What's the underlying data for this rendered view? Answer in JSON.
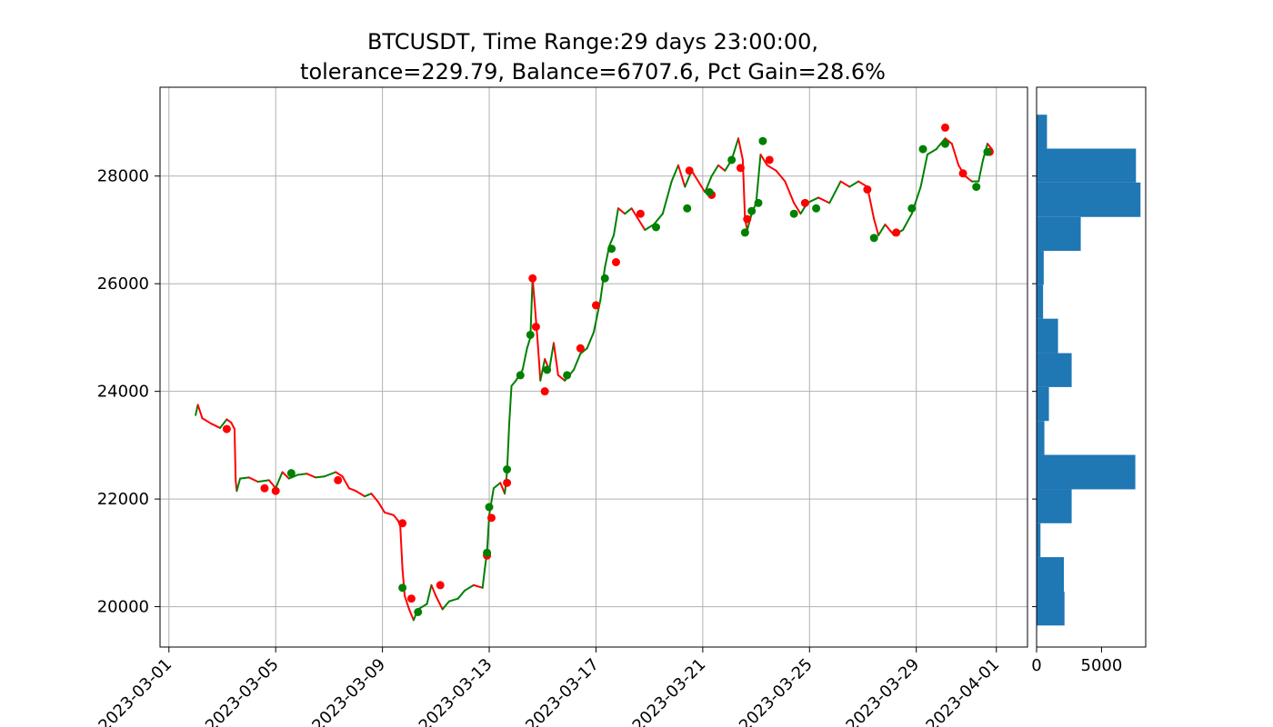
{
  "chart_data": [
    {
      "type": "line",
      "title_line1": "BTCUSDT, Time Range:29 days 23:00:00,",
      "title_line2": "tolerance=229.79, Balance=6707.6, Pct Gain=28.6%",
      "xlabel": "",
      "ylabel": "",
      "grid": true,
      "x_date_range": [
        "2023-02-28T16:00",
        "2023-04-02T04:00"
      ],
      "ylim": [
        19250,
        29650
      ],
      "x_ticks": [
        "2023-03-01",
        "2023-03-05",
        "2023-03-09",
        "2023-03-13",
        "2023-03-17",
        "2023-03-21",
        "2023-03-25",
        "2023-03-29",
        "2023-04-01"
      ],
      "y_ticks": [
        20000,
        22000,
        24000,
        26000,
        28000
      ],
      "y_tick_labels": [
        "20000",
        "22000",
        "24000",
        "26000",
        "28000"
      ],
      "series": [
        {
          "color": "#008000",
          "color_down": "#ff0000",
          "points": [
            [
              "2023-03-02T00:00",
              23560
            ],
            [
              "2023-03-02T02:00",
              23750
            ],
            [
              "2023-03-02T06:00",
              23500
            ],
            [
              "2023-03-02T14:00",
              23400
            ],
            [
              "2023-03-02T22:00",
              23320
            ],
            [
              "2023-03-03T04:00",
              23480
            ],
            [
              "2023-03-03T08:00",
              23420
            ],
            [
              "2023-03-03T11:00",
              23300
            ],
            [
              "2023-03-03T12:00",
              22350
            ],
            [
              "2023-03-03T13:00",
              22150
            ],
            [
              "2023-03-03T16:00",
              22380
            ],
            [
              "2023-03-04T00:00",
              22400
            ],
            [
              "2023-03-04T08:00",
              22320
            ],
            [
              "2023-03-04T18:00",
              22350
            ],
            [
              "2023-03-05T00:00",
              22200
            ],
            [
              "2023-03-05T06:00",
              22500
            ],
            [
              "2023-03-05T12:00",
              22380
            ],
            [
              "2023-03-05T20:00",
              22450
            ],
            [
              "2023-03-06T04:00",
              22470
            ],
            [
              "2023-03-06T12:00",
              22400
            ],
            [
              "2023-03-06T20:00",
              22420
            ],
            [
              "2023-03-07T06:00",
              22500
            ],
            [
              "2023-03-07T12:00",
              22420
            ],
            [
              "2023-03-07T18:00",
              22200
            ],
            [
              "2023-03-08T00:00",
              22150
            ],
            [
              "2023-03-08T08:00",
              22050
            ],
            [
              "2023-03-08T14:00",
              22100
            ],
            [
              "2023-03-08T20:00",
              21950
            ],
            [
              "2023-03-09T02:00",
              21750
            ],
            [
              "2023-03-09T10:00",
              21700
            ],
            [
              "2023-03-09T14:00",
              21600
            ],
            [
              "2023-03-09T16:00",
              21500
            ],
            [
              "2023-03-09T18:00",
              20700
            ],
            [
              "2023-03-09T20:00",
              20200
            ],
            [
              "2023-03-10T00:00",
              19950
            ],
            [
              "2023-03-10T04:00",
              19750
            ],
            [
              "2023-03-10T08:00",
              19950
            ],
            [
              "2023-03-10T12:00",
              20000
            ],
            [
              "2023-03-10T16:00",
              20050
            ],
            [
              "2023-03-10T20:00",
              20400
            ],
            [
              "2023-03-11T00:00",
              20200
            ],
            [
              "2023-03-11T06:00",
              19950
            ],
            [
              "2023-03-11T12:00",
              20100
            ],
            [
              "2023-03-11T20:00",
              20150
            ],
            [
              "2023-03-12T02:00",
              20300
            ],
            [
              "2023-03-12T10:00",
              20400
            ],
            [
              "2023-03-12T18:00",
              20350
            ],
            [
              "2023-03-12T20:00",
              20700
            ],
            [
              "2023-03-12T22:00",
              21000
            ],
            [
              "2023-03-13T00:00",
              21700
            ],
            [
              "2023-03-13T04:00",
              22200
            ],
            [
              "2023-03-13T10:00",
              22300
            ],
            [
              "2023-03-13T14:00",
              22100
            ],
            [
              "2023-03-13T16:00",
              22500
            ],
            [
              "2023-03-13T18:00",
              23400
            ],
            [
              "2023-03-13T20:00",
              24100
            ],
            [
              "2023-03-14T00:00",
              24200
            ],
            [
              "2023-03-14T06:00",
              24400
            ],
            [
              "2023-03-14T10:00",
              24800
            ],
            [
              "2023-03-14T13:00",
              25000
            ],
            [
              "2023-03-14T15:00",
              26100
            ],
            [
              "2023-03-14T17:00",
              25600
            ],
            [
              "2023-03-14T20:00",
              24800
            ],
            [
              "2023-03-14T22:00",
              24200
            ],
            [
              "2023-03-15T02:00",
              24600
            ],
            [
              "2023-03-15T06:00",
              24400
            ],
            [
              "2023-03-15T10:00",
              24900
            ],
            [
              "2023-03-15T14:00",
              24300
            ],
            [
              "2023-03-15T20:00",
              24200
            ],
            [
              "2023-03-16T04:00",
              24400
            ],
            [
              "2023-03-16T10:00",
              24700
            ],
            [
              "2023-03-16T16:00",
              24800
            ],
            [
              "2023-03-16T22:00",
              25100
            ],
            [
              "2023-03-17T04:00",
              25700
            ],
            [
              "2023-03-17T08:00",
              26300
            ],
            [
              "2023-03-17T12:00",
              26700
            ],
            [
              "2023-03-17T16:00",
              26900
            ],
            [
              "2023-03-17T20:00",
              27400
            ],
            [
              "2023-03-18T02:00",
              27300
            ],
            [
              "2023-03-18T08:00",
              27400
            ],
            [
              "2023-03-18T14:00",
              27200
            ],
            [
              "2023-03-18T20:00",
              27000
            ],
            [
              "2023-03-19T04:00",
              27100
            ],
            [
              "2023-03-19T12:00",
              27300
            ],
            [
              "2023-03-19T20:00",
              27900
            ],
            [
              "2023-03-20T02:00",
              28200
            ],
            [
              "2023-03-20T08:00",
              27800
            ],
            [
              "2023-03-20T14:00",
              28100
            ],
            [
              "2023-03-20T20:00",
              27900
            ],
            [
              "2023-03-21T02:00",
              27700
            ],
            [
              "2023-03-21T08:00",
              28000
            ],
            [
              "2023-03-21T14:00",
              28200
            ],
            [
              "2023-03-21T20:00",
              28100
            ],
            [
              "2023-03-22T02:00",
              28300
            ],
            [
              "2023-03-22T08:00",
              28700
            ],
            [
              "2023-03-22T12:00",
              28300
            ],
            [
              "2023-03-22T14:00",
              27200
            ],
            [
              "2023-03-22T16:00",
              27000
            ],
            [
              "2023-03-22T20:00",
              27300
            ],
            [
              "2023-03-23T00:00",
              27500
            ],
            [
              "2023-03-23T04:00",
              28400
            ],
            [
              "2023-03-23T10:00",
              28200
            ],
            [
              "2023-03-23T18:00",
              28100
            ],
            [
              "2023-03-24T02:00",
              27900
            ],
            [
              "2023-03-24T10:00",
              27500
            ],
            [
              "2023-03-24T16:00",
              27300
            ],
            [
              "2023-03-24T22:00",
              27500
            ],
            [
              "2023-03-25T08:00",
              27600
            ],
            [
              "2023-03-25T18:00",
              27500
            ],
            [
              "2023-03-26T04:00",
              27900
            ],
            [
              "2023-03-26T12:00",
              27800
            ],
            [
              "2023-03-26T20:00",
              27900
            ],
            [
              "2023-03-27T04:00",
              27800
            ],
            [
              "2023-03-27T10:00",
              27200
            ],
            [
              "2023-03-27T14:00",
              26900
            ],
            [
              "2023-03-27T20:00",
              27100
            ],
            [
              "2023-03-28T04:00",
              26900
            ],
            [
              "2023-03-28T12:00",
              27000
            ],
            [
              "2023-03-28T20:00",
              27300
            ],
            [
              "2023-03-29T04:00",
              27800
            ],
            [
              "2023-03-29T10:00",
              28400
            ],
            [
              "2023-03-29T18:00",
              28500
            ],
            [
              "2023-03-30T02:00",
              28700
            ],
            [
              "2023-03-30T08:00",
              28600
            ],
            [
              "2023-03-30T14:00",
              28200
            ],
            [
              "2023-03-30T20:00",
              28000
            ],
            [
              "2023-03-31T02:00",
              27900
            ],
            [
              "2023-03-31T08:00",
              27900
            ],
            [
              "2023-03-31T12:00",
              28300
            ],
            [
              "2023-03-31T16:00",
              28600
            ],
            [
              "2023-03-31T20:00",
              28500
            ]
          ]
        }
      ],
      "markers": {
        "buy_color": "#008000",
        "sell_color": "#ff0000",
        "buy_points": [
          [
            "2023-03-05T14:00",
            22480
          ],
          [
            "2023-03-09T18:00",
            20350
          ],
          [
            "2023-03-10T08:00",
            19900
          ],
          [
            "2023-03-12T22:00",
            21000
          ],
          [
            "2023-03-13T00:00",
            21850
          ],
          [
            "2023-03-13T16:00",
            22550
          ],
          [
            "2023-03-14T04:00",
            24300
          ],
          [
            "2023-03-14T13:00",
            25050
          ],
          [
            "2023-03-15T04:00",
            24400
          ],
          [
            "2023-03-15T22:00",
            24300
          ],
          [
            "2023-03-17T08:00",
            26100
          ],
          [
            "2023-03-17T14:00",
            26650
          ],
          [
            "2023-03-19T06:00",
            27050
          ],
          [
            "2023-03-20T10:00",
            27400
          ],
          [
            "2023-03-21T06:00",
            27700
          ],
          [
            "2023-03-22T02:00",
            28300
          ],
          [
            "2023-03-22T14:00",
            26950
          ],
          [
            "2023-03-22T20:00",
            27350
          ],
          [
            "2023-03-23T02:00",
            27500
          ],
          [
            "2023-03-23T06:00",
            28650
          ],
          [
            "2023-03-24T10:00",
            27300
          ],
          [
            "2023-03-25T06:00",
            27400
          ],
          [
            "2023-03-27T10:00",
            26850
          ],
          [
            "2023-03-28T20:00",
            27400
          ],
          [
            "2023-03-29T06:00",
            28500
          ],
          [
            "2023-03-30T02:00",
            28600
          ],
          [
            "2023-03-31T06:00",
            27800
          ],
          [
            "2023-03-31T16:00",
            28450
          ]
        ],
        "sell_points": [
          [
            "2023-03-03T04:00",
            23300
          ],
          [
            "2023-03-04T14:00",
            22200
          ],
          [
            "2023-03-05T00:00",
            22150
          ],
          [
            "2023-03-07T08:00",
            22350
          ],
          [
            "2023-03-09T18:00",
            21550
          ],
          [
            "2023-03-10T02:00",
            20150
          ],
          [
            "2023-03-11T04:00",
            20400
          ],
          [
            "2023-03-12T22:00",
            20950
          ],
          [
            "2023-03-13T02:00",
            21650
          ],
          [
            "2023-03-13T16:00",
            22300
          ],
          [
            "2023-03-14T15:00",
            26100
          ],
          [
            "2023-03-14T18:00",
            25200
          ],
          [
            "2023-03-15T02:00",
            24000
          ],
          [
            "2023-03-16T10:00",
            24800
          ],
          [
            "2023-03-17T00:00",
            25600
          ],
          [
            "2023-03-17T18:00",
            26400
          ],
          [
            "2023-03-18T16:00",
            27300
          ],
          [
            "2023-03-20T12:00",
            28100
          ],
          [
            "2023-03-21T08:00",
            27650
          ],
          [
            "2023-03-22T10:00",
            28150
          ],
          [
            "2023-03-22T16:00",
            27200
          ],
          [
            "2023-03-23T12:00",
            28300
          ],
          [
            "2023-03-24T20:00",
            27500
          ],
          [
            "2023-03-27T04:00",
            27750
          ],
          [
            "2023-03-28T06:00",
            26950
          ],
          [
            "2023-03-30T02:00",
            28900
          ],
          [
            "2023-03-30T18:00",
            28050
          ],
          [
            "2023-03-31T18:00",
            28450
          ]
        ]
      }
    },
    {
      "type": "bar",
      "orientation": "horizontal",
      "color": "#1f77b4",
      "grid": false,
      "xlim": [
        0,
        8400
      ],
      "x_ticks": [
        0,
        5000
      ],
      "x_tick_labels": [
        "0",
        "5000"
      ],
      "bins": [
        {
          "y0": 19650,
          "y1": 20280,
          "count": 2150
        },
        {
          "y0": 20280,
          "y1": 20920,
          "count": 2100
        },
        {
          "y0": 20920,
          "y1": 21550,
          "count": 300
        },
        {
          "y0": 21550,
          "y1": 22180,
          "count": 2700
        },
        {
          "y0": 22180,
          "y1": 22820,
          "count": 7600
        },
        {
          "y0": 22820,
          "y1": 23450,
          "count": 600
        },
        {
          "y0": 23450,
          "y1": 24080,
          "count": 950
        },
        {
          "y0": 24080,
          "y1": 24710,
          "count": 2700
        },
        {
          "y0": 24710,
          "y1": 25350,
          "count": 1650
        },
        {
          "y0": 25350,
          "y1": 25980,
          "count": 500
        },
        {
          "y0": 25980,
          "y1": 26610,
          "count": 550
        },
        {
          "y0": 26610,
          "y1": 27240,
          "count": 3400
        },
        {
          "y0": 27240,
          "y1": 27880,
          "count": 8000
        },
        {
          "y0": 27880,
          "y1": 28510,
          "count": 7650
        },
        {
          "y0": 28510,
          "y1": 29140,
          "count": 800
        }
      ]
    }
  ]
}
